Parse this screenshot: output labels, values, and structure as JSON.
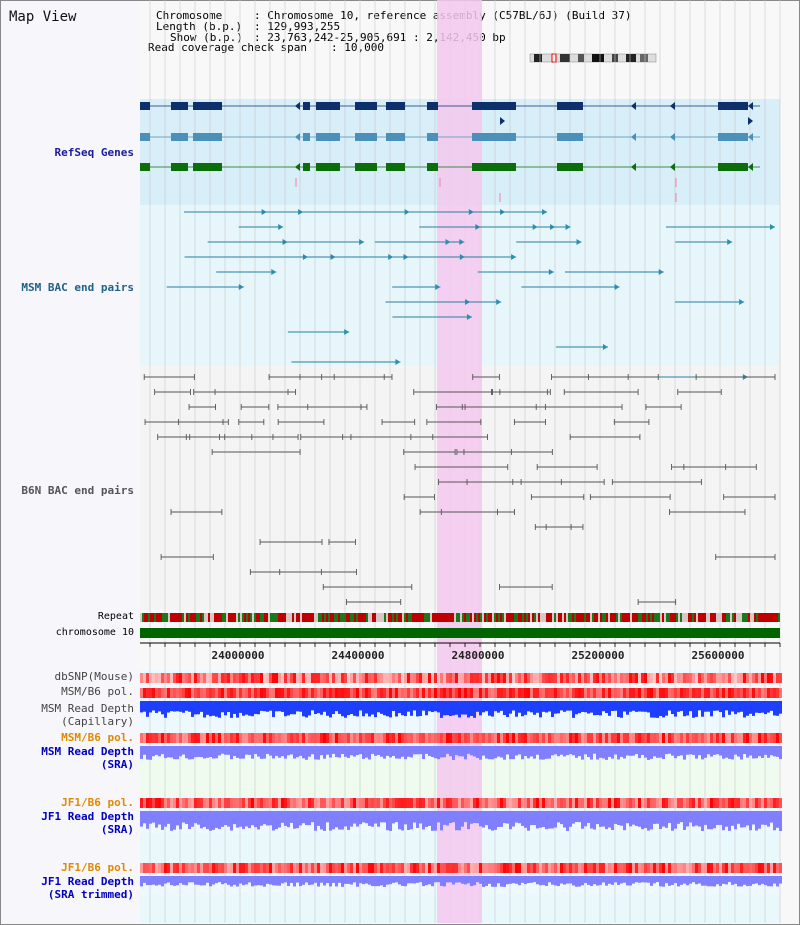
{
  "title": "Map View",
  "info": {
    "chromosome_key": "Chromosome",
    "chromosome_val": "Chromosome 10, reference assembly (C57BL/6J) (Build 37)",
    "length_key": "Length (b.p.)",
    "length_val": "129,993,255",
    "show_key": "Show (b.p.)",
    "show_val": "23,763,242-25,905,691 : 2,142,450 bp",
    "coverage_key": "Read coverage check span",
    "coverage_val": "10,000"
  },
  "tracks": {
    "refseq": "RefSeq Genes",
    "msm_bac": "MSM BAC end pairs",
    "b6n_bac": "B6N BAC end pairs",
    "repeat": "Repeat",
    "chrom": "chromosome 10",
    "dbsnp": "dbSNP(Mouse)",
    "msm_pol_1": "MSM/B6 pol.",
    "msm_depth_cap_1": "MSM Read Depth",
    "msm_depth_cap_2": "(Capillary)",
    "msm_pol_2": "MSM/B6 pol.",
    "msm_depth_sra_1": "MSM Read Depth",
    "msm_depth_sra_2": "(SRA)",
    "jf1_pol_1": "JF1/B6 pol.",
    "jf1_depth_1": "JF1 Read Depth",
    "jf1_depth_2": "(SRA)",
    "jf1_pol_2": "JF1/B6 pol.",
    "jf1_trim_1": "JF1 Read Depth",
    "jf1_trim_2": "(SRA trimmed)"
  },
  "axis": {
    "ticks": [
      "24000000",
      "24400000",
      "24800000",
      "25200000",
      "25600000"
    ]
  },
  "colors": {
    "refseq_dark": "#0d2f6b",
    "refseq_mid": "#4a90b8",
    "refseq_green": "#0b6e0b",
    "highlight": "#f5c8ee",
    "chrom_green": "#006400",
    "depth_blue": "#1f3fff",
    "depth_light_blue": "#7f7fff",
    "pol_red": "#ff4040"
  }
}
